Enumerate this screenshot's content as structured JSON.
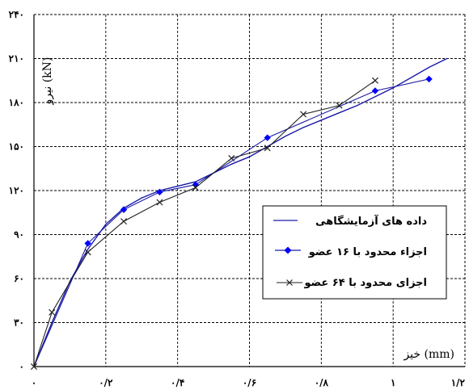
{
  "chart_data": {
    "type": "line",
    "title": "",
    "xlabel": "خیز (mm)",
    "ylabel": "نیرو (kN)",
    "xlim": [
      0,
      1.2
    ],
    "ylim": [
      0,
      240
    ],
    "x_ticks": [
      0,
      0.2,
      0.4,
      0.6,
      0.8,
      1,
      1.2
    ],
    "x_tick_labels": [
      "۰",
      "۰/۲",
      "۰/۴",
      "۰/۶",
      "۰/۸",
      "۱",
      "۱/۲"
    ],
    "y_ticks": [
      0,
      30,
      60,
      90,
      120,
      150,
      180,
      210,
      240
    ],
    "y_tick_labels": [
      "۰",
      "۳۰",
      "۶۰",
      "۹۰",
      "۱۲۰",
      "۱۵۰",
      "۱۸۰",
      "۲۱۰",
      "۲۴۰"
    ],
    "grid": true,
    "grid_style": "dashed",
    "legend_position": "right-middle",
    "series": [
      {
        "name": "داده های آزمایشگاهی",
        "marker": "none",
        "color": "#1a1aa6",
        "x": [
          0,
          0.05,
          0.1,
          0.15,
          0.2,
          0.25,
          0.3,
          0.35,
          0.4,
          0.45,
          0.5,
          0.55,
          0.6,
          0.65,
          0.7,
          0.75,
          0.8,
          0.85,
          0.9,
          0.95,
          1.0,
          1.05,
          1.1,
          1.15
        ],
        "y": [
          0,
          30,
          58,
          80,
          97,
          108,
          115,
          120,
          123,
          126,
          132,
          138,
          143,
          150,
          157,
          163,
          168,
          173,
          178,
          184,
          190,
          197,
          204,
          210
        ]
      },
      {
        "name": "اجزاء محدود با ۱۶ عضو",
        "marker": "diamond",
        "color": "#1a1aa6",
        "marker_color": "#0000ff",
        "x": [
          0,
          0.15,
          0.25,
          0.35,
          0.45,
          0.65,
          0.95,
          1.1
        ],
        "y": [
          0,
          84,
          107,
          119,
          124,
          156,
          188,
          196
        ]
      },
      {
        "name": "اجزای محدود با ۶۴ عضو",
        "marker": "x",
        "color": "#222222",
        "x": [
          0,
          0.05,
          0.15,
          0.25,
          0.35,
          0.45,
          0.55,
          0.65,
          0.75,
          0.85,
          0.95
        ],
        "y": [
          0,
          37,
          78,
          99,
          112,
          122,
          142,
          149,
          172,
          178,
          195
        ]
      }
    ]
  }
}
